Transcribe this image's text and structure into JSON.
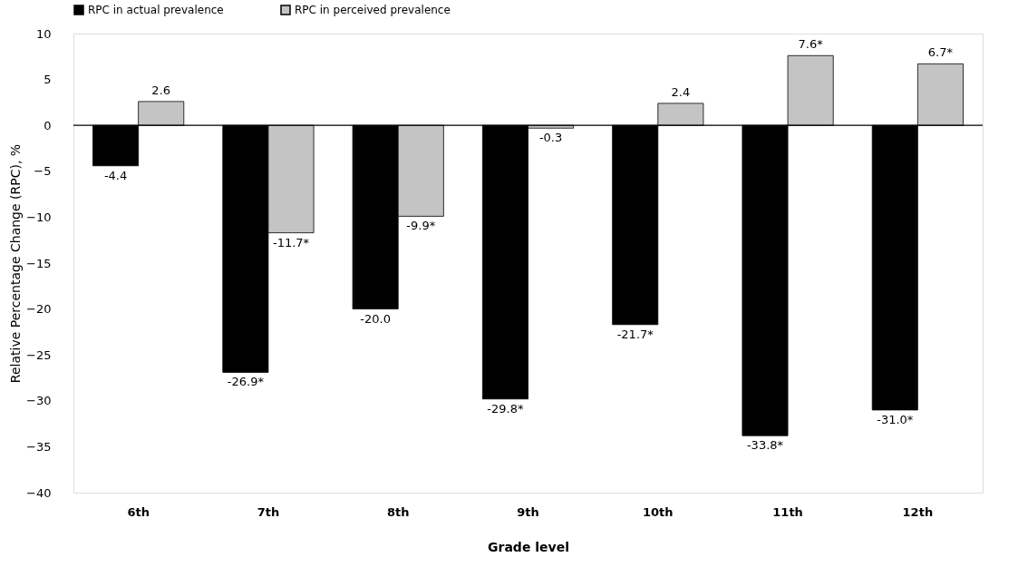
{
  "chart_data": {
    "type": "bar",
    "xlabel": "Grade level",
    "ylabel": "Relative Percentage Change (RPC), %",
    "categories": [
      "6th",
      "7th",
      "8th",
      "9th",
      "10th",
      "11th",
      "12th"
    ],
    "series": [
      {
        "name": "RPC in actual prevalence",
        "color": "#000000",
        "values": [
          -4.4,
          -26.9,
          -20.0,
          -29.8,
          -21.7,
          -33.8,
          -31.0
        ],
        "value_labels": [
          "-4.4",
          "-26.9*",
          "-20.0",
          "-29.8*",
          "-21.7*",
          "-33.8*",
          "-31.0*"
        ]
      },
      {
        "name": "RPC in perceived prevalence",
        "color": "#c4c4c4",
        "values": [
          2.6,
          -11.7,
          -9.9,
          -0.3,
          2.4,
          7.6,
          6.7
        ],
        "value_labels": [
          "2.6",
          "-11.7*",
          "-9.9*",
          "-0.3",
          "2.4",
          "7.6*",
          "6.7*"
        ]
      }
    ],
    "ylim": [
      -40,
      10
    ],
    "yticks": [
      -40,
      -35,
      -30,
      -25,
      -20,
      -15,
      -10,
      -5,
      0,
      5,
      10
    ],
    "ref_lines": [
      {
        "axis": "y",
        "value": 0,
        "color": "#000000"
      }
    ],
    "grid": false,
    "legend": "top"
  }
}
